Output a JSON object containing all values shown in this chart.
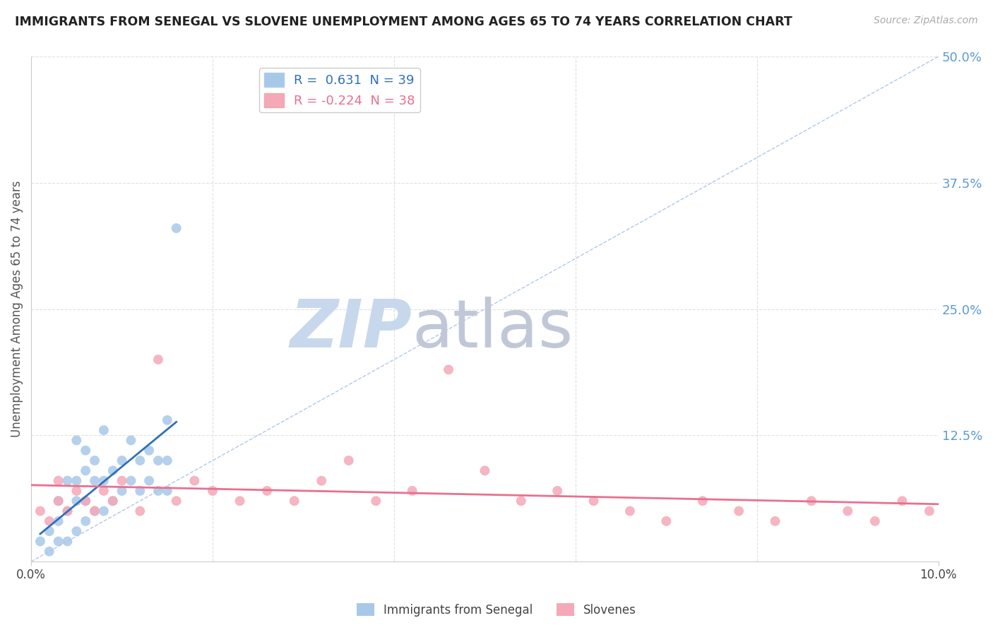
{
  "title": "IMMIGRANTS FROM SENEGAL VS SLOVENE UNEMPLOYMENT AMONG AGES 65 TO 74 YEARS CORRELATION CHART",
  "source": "Source: ZipAtlas.com",
  "ylabel": "Unemployment Among Ages 65 to 74 years",
  "xlim": [
    0.0,
    0.1
  ],
  "ylim": [
    0.0,
    0.5
  ],
  "yticks_right": [
    0.125,
    0.25,
    0.375,
    0.5
  ],
  "ytick_labels_right": [
    "12.5%",
    "25.0%",
    "37.5%",
    "50.0%"
  ],
  "r_blue": 0.631,
  "n_blue": 39,
  "r_pink": -0.224,
  "n_pink": 38,
  "blue_color": "#a8c8e8",
  "pink_color": "#f4a8b8",
  "blue_line_color": "#3070b8",
  "pink_line_color": "#e87090",
  "diag_color": "#b0c8e8",
  "right_axis_color": "#5b9bd5",
  "background_color": "#ffffff",
  "grid_color": "#e0e0e0",
  "blue_scatter_x": [
    0.001,
    0.002,
    0.002,
    0.003,
    0.003,
    0.003,
    0.004,
    0.004,
    0.004,
    0.005,
    0.005,
    0.005,
    0.005,
    0.006,
    0.006,
    0.006,
    0.006,
    0.007,
    0.007,
    0.007,
    0.008,
    0.008,
    0.008,
    0.009,
    0.009,
    0.01,
    0.01,
    0.011,
    0.011,
    0.012,
    0.012,
    0.013,
    0.013,
    0.014,
    0.014,
    0.015,
    0.015,
    0.015,
    0.016
  ],
  "blue_scatter_y": [
    0.02,
    0.01,
    0.03,
    0.02,
    0.04,
    0.06,
    0.02,
    0.05,
    0.08,
    0.03,
    0.06,
    0.08,
    0.12,
    0.04,
    0.06,
    0.09,
    0.11,
    0.05,
    0.08,
    0.1,
    0.05,
    0.08,
    0.13,
    0.06,
    0.09,
    0.07,
    0.1,
    0.08,
    0.12,
    0.07,
    0.1,
    0.08,
    0.11,
    0.07,
    0.1,
    0.07,
    0.1,
    0.14,
    0.33
  ],
  "pink_scatter_x": [
    0.001,
    0.002,
    0.003,
    0.003,
    0.004,
    0.005,
    0.006,
    0.007,
    0.008,
    0.009,
    0.01,
    0.012,
    0.014,
    0.016,
    0.018,
    0.02,
    0.023,
    0.026,
    0.029,
    0.032,
    0.035,
    0.038,
    0.042,
    0.046,
    0.05,
    0.054,
    0.058,
    0.062,
    0.066,
    0.07,
    0.074,
    0.078,
    0.082,
    0.086,
    0.09,
    0.093,
    0.096,
    0.099
  ],
  "pink_scatter_y": [
    0.05,
    0.04,
    0.06,
    0.08,
    0.05,
    0.07,
    0.06,
    0.05,
    0.07,
    0.06,
    0.08,
    0.05,
    0.2,
    0.06,
    0.08,
    0.07,
    0.06,
    0.07,
    0.06,
    0.08,
    0.1,
    0.06,
    0.07,
    0.19,
    0.09,
    0.06,
    0.07,
    0.06,
    0.05,
    0.04,
    0.06,
    0.05,
    0.04,
    0.06,
    0.05,
    0.04,
    0.06,
    0.05
  ],
  "watermark_zip": "ZIP",
  "watermark_atlas": "atlas",
  "watermark_color_zip": "#c8d8ec",
  "watermark_color_atlas": "#c0c8d8"
}
